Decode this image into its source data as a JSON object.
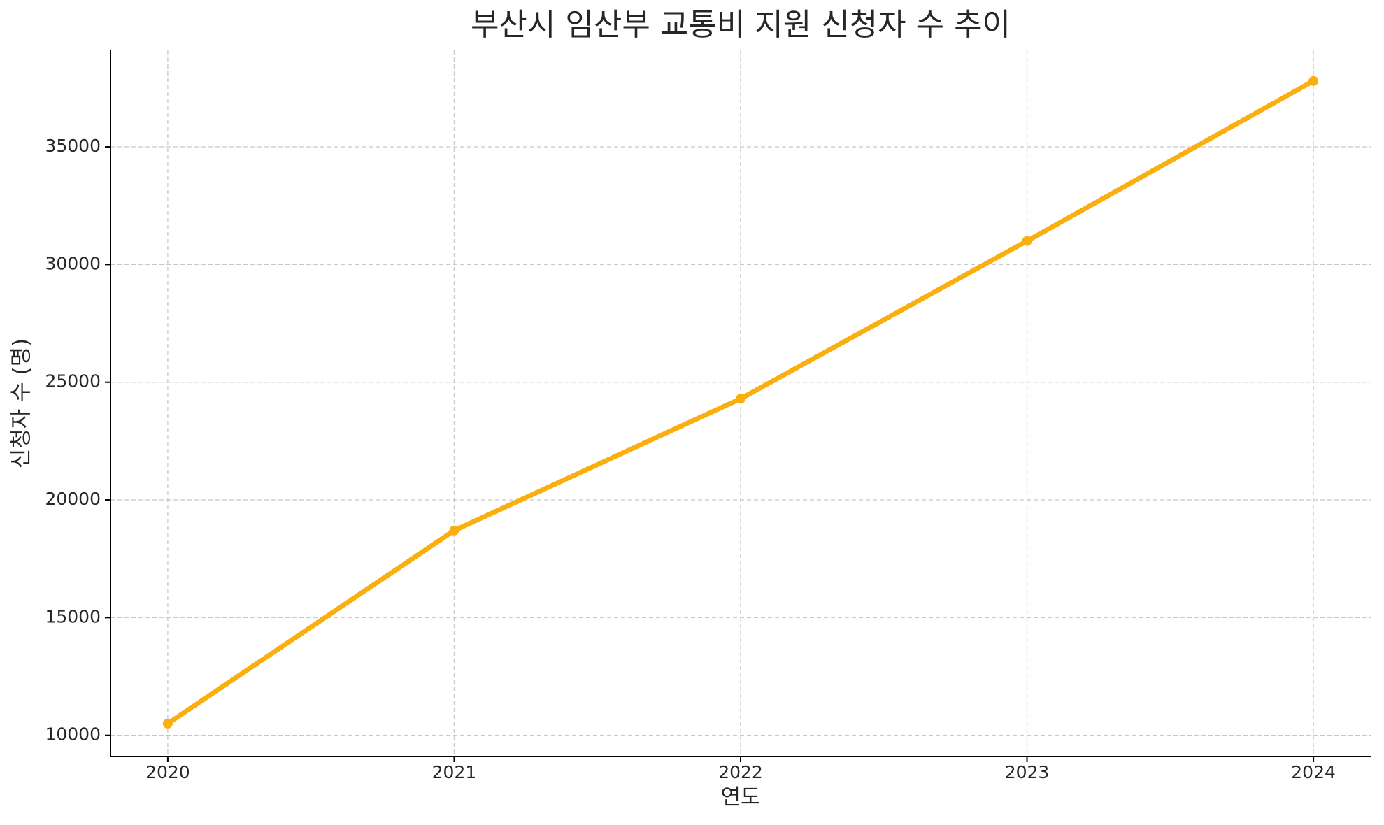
{
  "chart_data": {
    "type": "line",
    "title": "부산시 임산부 교통비 지원 신청자 수 추이",
    "x_label": "연도",
    "y_label": "신청자 수 (명)",
    "x": [
      2020,
      2021,
      2022,
      2023,
      2024
    ],
    "series": [
      {
        "name": "신청자 수",
        "color": "#fbaf0f",
        "values": [
          10500,
          18700,
          24300,
          31000,
          37800
        ]
      }
    ],
    "xlim": [
      2019.8,
      2024.2
    ],
    "xticks": [
      2020,
      2021,
      2022,
      2023,
      2024
    ],
    "ylim": [
      9100,
      39100
    ],
    "yticks": [
      10000,
      15000,
      20000,
      25000,
      30000,
      35000
    ],
    "grid": true
  }
}
